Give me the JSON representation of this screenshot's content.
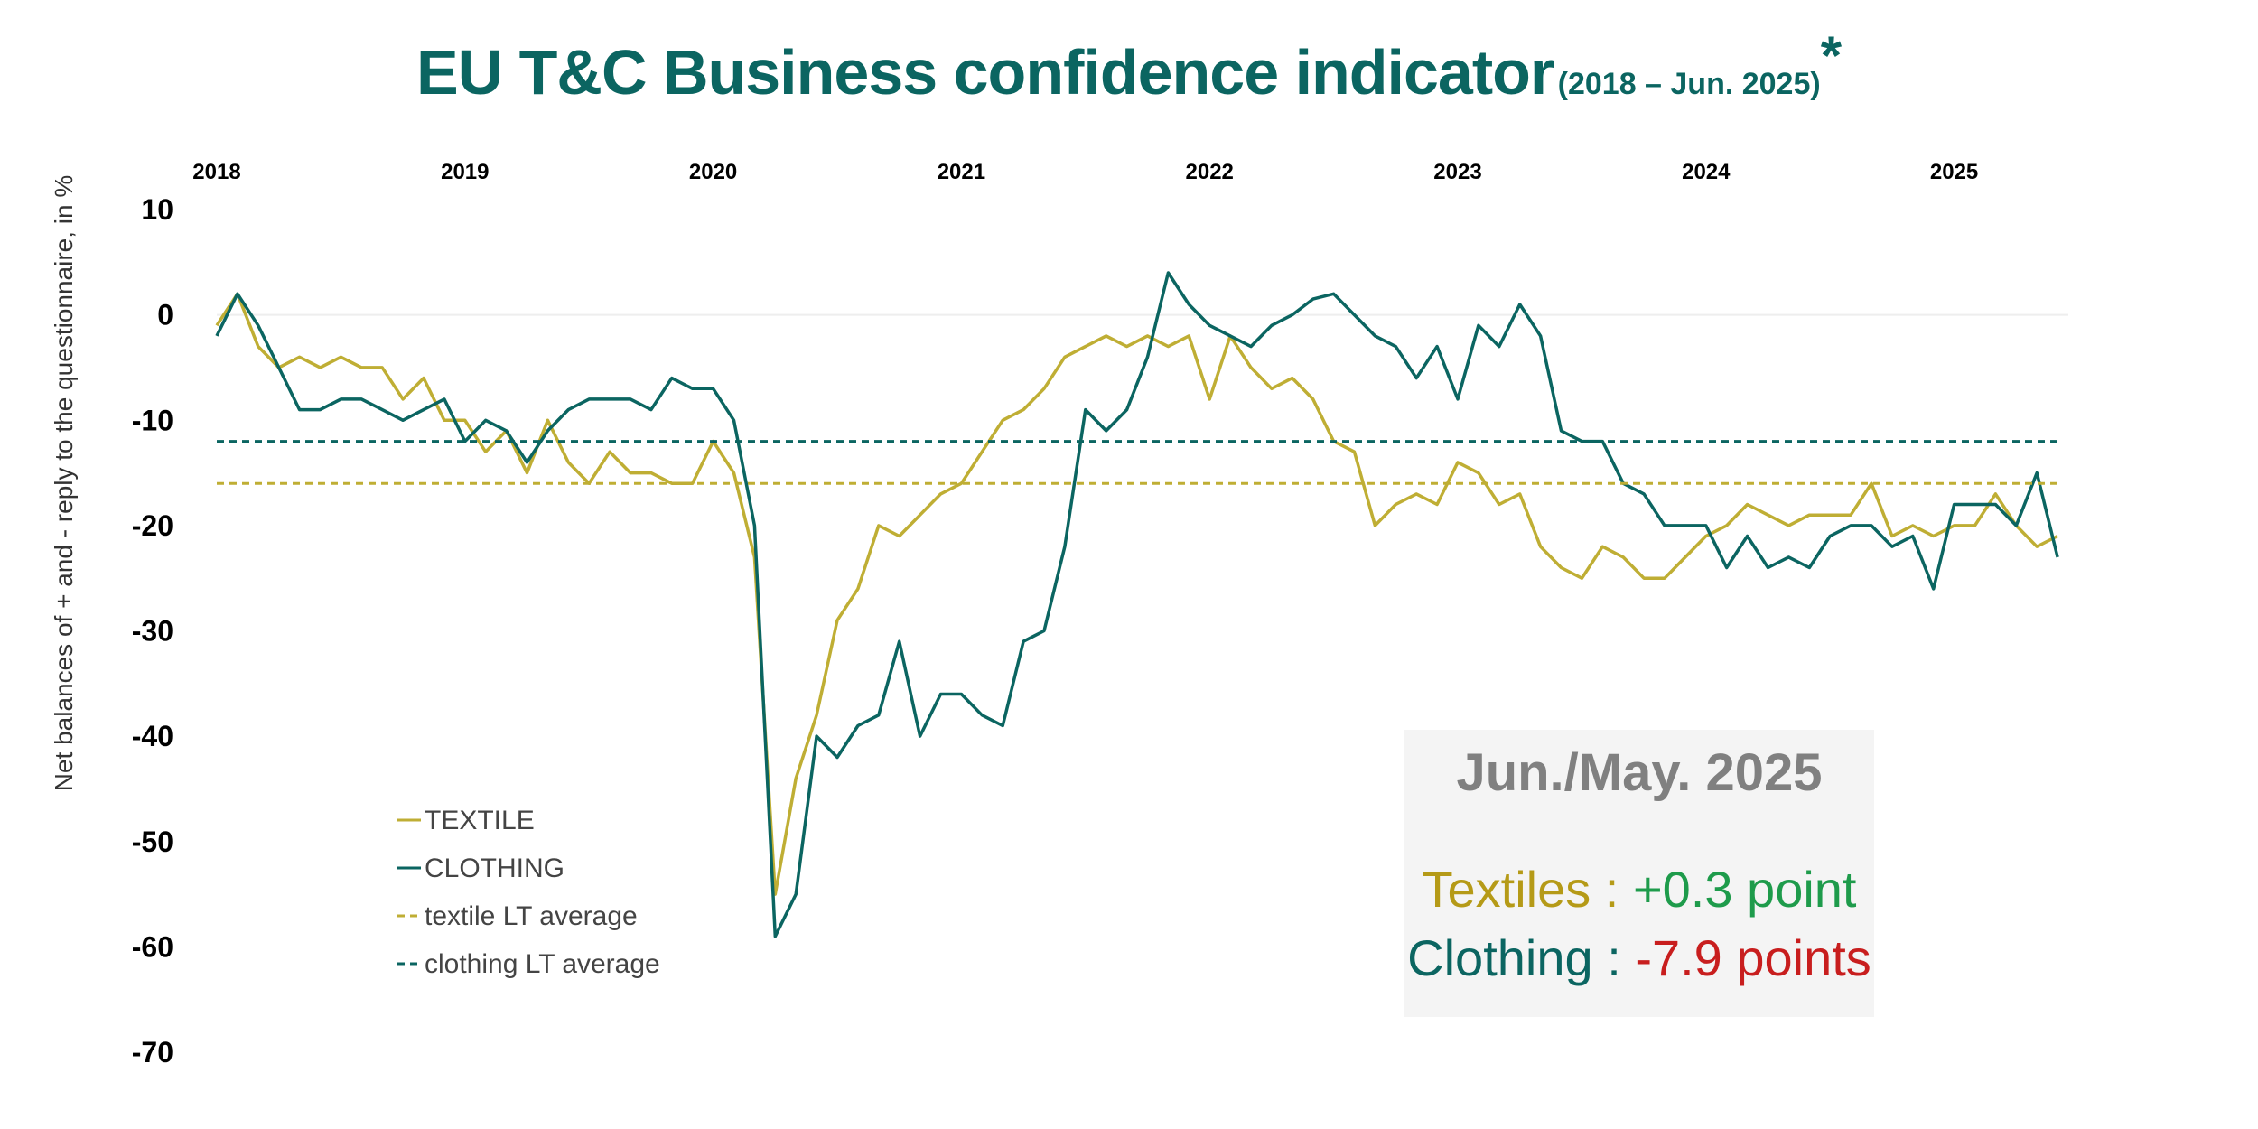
{
  "title": {
    "main": "EU T&C Business confidence indicator",
    "sub": "(2018 – Jun. 2025)",
    "star": "*"
  },
  "info_box": {
    "title": "Jun./May. 2025",
    "textile_label": "Textiles :",
    "textile_value": "+0.3 point",
    "clothing_label": "Clothing :",
    "clothing_value": "-7.9 points"
  },
  "colors": {
    "textile": "#bfae34",
    "clothing": "#0b6561",
    "title": "#0b6561",
    "positive": "#1e9b4b",
    "negative": "#c81e1e"
  },
  "chart_data": {
    "type": "line",
    "title": "EU T&C Business confidence indicator",
    "ylabel": "Net balances of + and - reply to the questionnaire, in %",
    "xlabel": "",
    "ylim": [
      -70,
      10
    ],
    "yticks": [
      10,
      0,
      -10,
      -20,
      -30,
      -40,
      -50,
      -60,
      -70
    ],
    "year_labels": [
      "2018",
      "2019",
      "2020",
      "2021",
      "2022",
      "2023",
      "2024",
      "2025"
    ],
    "x_start": "2018-01",
    "x_end": "2025-06",
    "legend_position": "bottom-left",
    "grid": "zero line only",
    "series": [
      {
        "name": "TEXTILE",
        "style": "solid",
        "color": "#bfae34",
        "values": [
          -1,
          2,
          -3,
          -5,
          -4,
          -5,
          -4,
          -5,
          -5,
          -8,
          -6,
          -10,
          -10,
          -13,
          -11,
          -15,
          -10,
          -14,
          -16,
          -13,
          -15,
          -15,
          -16,
          -16,
          -12,
          -15,
          -23,
          -55,
          -44,
          -38,
          -29,
          -26,
          -20,
          -21,
          -19,
          -17,
          -16,
          -13,
          -10,
          -9,
          -7,
          -4,
          -3,
          -2,
          -3,
          -2,
          -3,
          -2,
          -8,
          -2,
          -5,
          -7,
          -6,
          -8,
          -12,
          -13,
          -20,
          -18,
          -17,
          -18,
          -14,
          -15,
          -18,
          -17,
          -22,
          -24,
          -25,
          -22,
          -23,
          -25,
          -25,
          -23,
          -21,
          -20,
          -18,
          -19,
          -20,
          -19,
          -19,
          -19,
          -16,
          -21,
          -20,
          -21,
          -20,
          -20,
          -17,
          -20,
          -22,
          -21
        ]
      },
      {
        "name": "CLOTHING",
        "style": "solid",
        "color": "#0b6561",
        "values": [
          -2,
          2,
          -1,
          -5,
          -9,
          -9,
          -8,
          -8,
          -9,
          -10,
          -9,
          -8,
          -12,
          -10,
          -11,
          -14,
          -11,
          -9,
          -8,
          -8,
          -8,
          -9,
          -6,
          -7,
          -7,
          -10,
          -20,
          -59,
          -55,
          -40,
          -42,
          -39,
          -38,
          -31,
          -40,
          -36,
          -36,
          -38,
          -39,
          -31,
          -30,
          -22,
          -9,
          -11,
          -9,
          -4,
          4,
          1,
          -1,
          -2,
          -3,
          -1,
          0,
          1.5,
          2,
          0,
          -2,
          -3,
          -6,
          -3,
          -8,
          -1,
          -3,
          1,
          -2,
          -11,
          -12,
          -12,
          -16,
          -17,
          -20,
          -20,
          -20,
          -24,
          -21,
          -24,
          -23,
          -24,
          -21,
          -20,
          -20,
          -22,
          -21,
          -26,
          -18,
          -18,
          -18,
          -20,
          -15,
          -23
        ]
      },
      {
        "name": "textile LT average",
        "style": "dashed",
        "color": "#bfae34",
        "constant": -16
      },
      {
        "name": "clothing LT average",
        "style": "dashed",
        "color": "#0b6561",
        "constant": -12
      }
    ]
  }
}
